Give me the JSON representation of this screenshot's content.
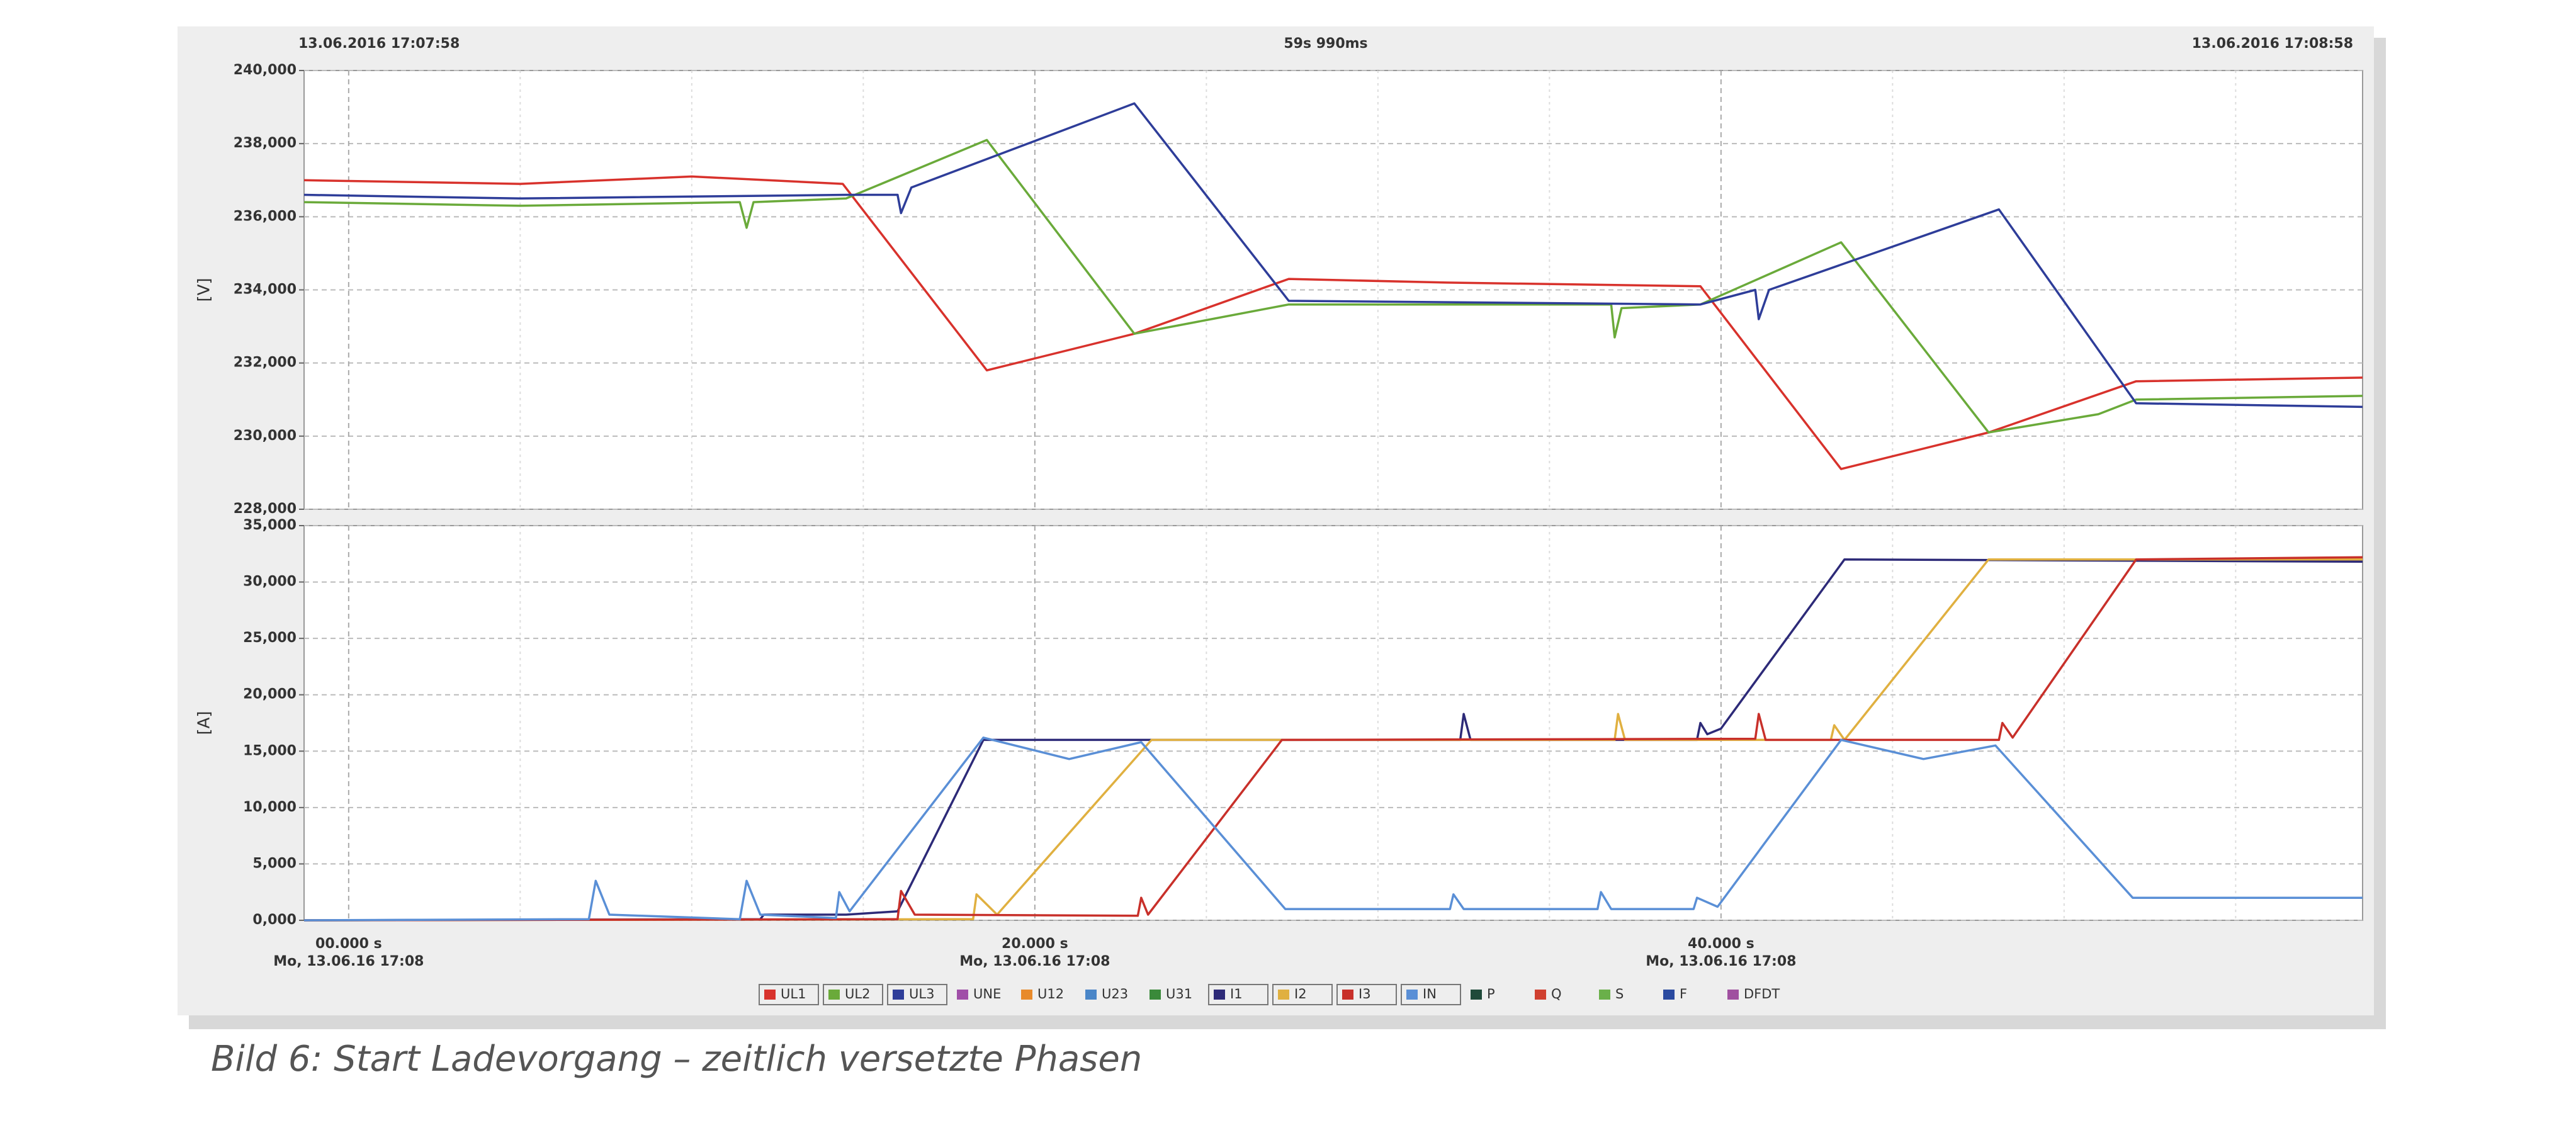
{
  "header": {
    "start": "13.06.2016 17:07:58",
    "duration": "59s 990ms",
    "end": "13.06.2016 17:08:58"
  },
  "caption": "Bild 6: Start Ladevorgang – zeitlich versetzte Phasen",
  "chart_data": [
    {
      "type": "line",
      "y_label": "[V]",
      "grid": true,
      "xlim": [
        -1.3,
        58.7
      ],
      "xticks": [
        0,
        20,
        40
      ],
      "minor_xticks": [
        5,
        10,
        15,
        25,
        30,
        35,
        45,
        50,
        55
      ],
      "ylim": [
        228,
        240
      ],
      "yticks": [
        {
          "value": 228,
          "label": "228,000"
        },
        {
          "value": 230,
          "label": "230,000"
        },
        {
          "value": 232,
          "label": "232,000"
        },
        {
          "value": 234,
          "label": "234,000"
        },
        {
          "value": 236,
          "label": "236,000"
        },
        {
          "value": 238,
          "label": "238,000"
        },
        {
          "value": 240,
          "label": "240,000"
        }
      ],
      "series": [
        {
          "name": "UL1",
          "color": "#d8322c",
          "x": [
            -1.3,
            5,
            10,
            14.4,
            18.6,
            22.9,
            27.4,
            32,
            39.4,
            43.5,
            47.8,
            52.1,
            58.7
          ],
          "values": [
            237.0,
            236.9,
            237.1,
            236.9,
            231.8,
            232.8,
            234.3,
            234.2,
            234.1,
            229.1,
            230.1,
            231.5,
            231.6
          ]
        },
        {
          "name": "UL2",
          "color": "#6aaa3a",
          "x": [
            -1.3,
            5,
            11.4,
            11.6,
            11.8,
            14.5,
            18.6,
            22.9,
            27.4,
            36.8,
            36.9,
            37.1,
            39.4,
            43.5,
            47.8,
            51,
            52.1,
            58.7
          ],
          "values": [
            236.4,
            236.3,
            236.4,
            235.7,
            236.4,
            236.5,
            238.1,
            232.8,
            233.6,
            233.6,
            232.7,
            233.5,
            233.6,
            235.3,
            230.1,
            230.6,
            231.0,
            231.1
          ]
        },
        {
          "name": "UL3",
          "color": "#2e3d99",
          "x": [
            -1.3,
            5,
            14.5,
            16.0,
            16.1,
            16.4,
            22.9,
            27.4,
            39.4,
            41.0,
            41.1,
            41.4,
            48.1,
            52.1,
            58.7
          ],
          "values": [
            236.6,
            236.5,
            236.6,
            236.6,
            236.1,
            236.8,
            239.1,
            233.7,
            233.6,
            234.0,
            233.2,
            234.0,
            236.2,
            230.9,
            230.8
          ]
        }
      ],
      "inactive_series": [
        {
          "name": "UNE",
          "color": "#a04fa8"
        },
        {
          "name": "U12",
          "color": "#e88a2a"
        },
        {
          "name": "U23",
          "color": "#4a86c8"
        },
        {
          "name": "U31",
          "color": "#3a8a3a"
        }
      ]
    },
    {
      "type": "line",
      "y_label": "[A]",
      "grid": true,
      "xlim": [
        -1.3,
        58.7
      ],
      "xticks": [
        {
          "value": 0,
          "label": "00.000 s"
        },
        {
          "value": 20,
          "label": "20.000 s"
        },
        {
          "value": 40,
          "label": "40.000 s"
        }
      ],
      "xtick_dates": [
        "Mo, 13.06.16 17:08",
        "Mo, 13.06.16 17:08",
        "Mo, 13.06.16 17:08"
      ],
      "minor_xticks": [
        5,
        10,
        15,
        25,
        30,
        35,
        45,
        50,
        55
      ],
      "ylim": [
        0,
        35
      ],
      "yticks": [
        {
          "value": 0,
          "label": "0,000"
        },
        {
          "value": 5,
          "label": "5,000"
        },
        {
          "value": 10,
          "label": "10,000"
        },
        {
          "value": 15,
          "label": "15,000"
        },
        {
          "value": 20,
          "label": "20,000"
        },
        {
          "value": 25,
          "label": "25,000"
        },
        {
          "value": 30,
          "label": "30,000"
        },
        {
          "value": 35,
          "label": "35,000"
        }
      ],
      "series": [
        {
          "name": "I1",
          "color": "#2d2a78",
          "x": [
            -1.3,
            12.0,
            12.1,
            14.5,
            16.0,
            18.5,
            32.4,
            32.5,
            32.7,
            39.3,
            39.4,
            39.6,
            40.0,
            43.6,
            58.7
          ],
          "values": [
            0,
            0.1,
            0.5,
            0.5,
            0.8,
            16.0,
            16.0,
            18.3,
            16.0,
            16.0,
            17.5,
            16.5,
            17.0,
            32.0,
            31.8
          ]
        },
        {
          "name": "I2",
          "color": "#e0b040",
          "x": [
            -1.3,
            18.2,
            18.3,
            18.9,
            23.4,
            36.9,
            37.0,
            37.2,
            43.2,
            43.3,
            43.6,
            47.8,
            58.7
          ],
          "values": [
            0,
            0.1,
            2.3,
            0.5,
            16.0,
            16.0,
            18.3,
            16.0,
            16.0,
            17.3,
            16.0,
            32.0,
            32.0
          ]
        },
        {
          "name": "I3",
          "color": "#c8302a",
          "x": [
            -1.3,
            16.0,
            16.1,
            16.5,
            23.0,
            23.1,
            23.3,
            27.2,
            41.0,
            41.1,
            41.3,
            48.1,
            48.2,
            48.5,
            52.1,
            58.7
          ],
          "values": [
            0,
            0.1,
            2.6,
            0.5,
            0.4,
            2.0,
            0.5,
            16.0,
            16.1,
            18.3,
            16.0,
            16.0,
            17.5,
            16.2,
            32.0,
            32.2
          ]
        },
        {
          "name": "IN",
          "color": "#5a8fd6",
          "x": [
            -1.3,
            7.0,
            7.2,
            7.6,
            11.4,
            11.6,
            12.0,
            14.2,
            14.3,
            14.6,
            18.5,
            21,
            23.1,
            27.3,
            32.1,
            32.2,
            32.5,
            36.4,
            36.5,
            36.8,
            39.2,
            39.3,
            39.9,
            43.5,
            45.9,
            48,
            52,
            58.7
          ],
          "values": [
            0,
            0.1,
            3.5,
            0.5,
            0.1,
            3.5,
            0.5,
            0.2,
            2.5,
            0.8,
            16.2,
            14.3,
            15.8,
            1.0,
            1.0,
            2.3,
            1.0,
            1.0,
            2.5,
            1.0,
            1.0,
            2.0,
            1.2,
            16.0,
            14.3,
            15.5,
            2.0,
            2.0
          ]
        }
      ],
      "inactive_series": [
        {
          "name": "P",
          "color": "#1f4a3a"
        },
        {
          "name": "Q",
          "color": "#d04030"
        },
        {
          "name": "S",
          "color": "#6ab04a"
        },
        {
          "name": "F",
          "color": "#2a4aa0"
        },
        {
          "name": "DFDT",
          "color": "#a050a0"
        }
      ]
    }
  ]
}
